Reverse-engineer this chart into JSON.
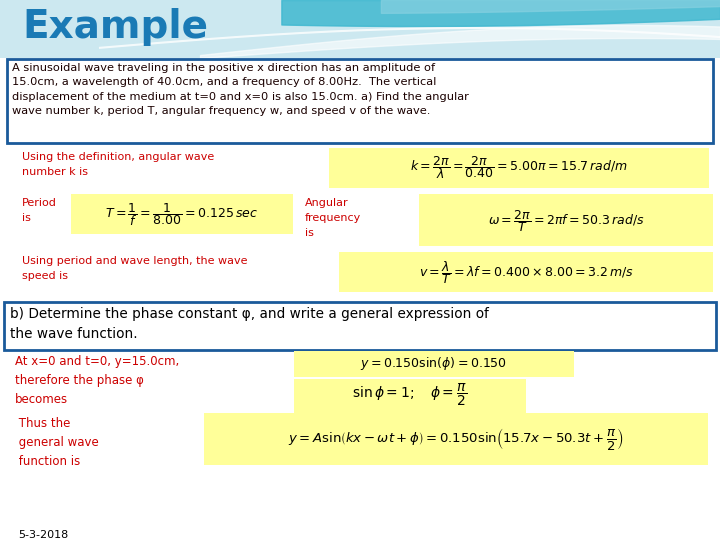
{
  "title": "Example",
  "title_color": "#1a7ab5",
  "title_fontsize": 28,
  "yellow_bg": "#ffff99",
  "box_border_color": "#1a5a9a",
  "red_text_color": "#cc0000",
  "date_text": "5-3-2018",
  "problem_text": "A sinusoidal wave traveling in the positive x direction has an amplitude of\n15.0cm, a wavelength of 40.0cm, and a frequency of 8.00Hz.  The vertical\ndisplacement of the medium at t=0 and x=0 is also 15.0cm. a) Find the angular\nwave number k, period T, angular frequency w, and speed v of the wave.",
  "part_b_text": "b) Determine the phase constant φ, and write a general expression of\nthe wave function.",
  "eq1": "$k = \\dfrac{2\\pi}{\\lambda} = \\dfrac{2\\pi}{0.40} = 5.00\\pi = 15.7\\,rad/m$",
  "eq2": "$T = \\dfrac{1}{f} = \\dfrac{1}{8.00} = 0.125\\,sec$",
  "eq3": "$\\omega = \\dfrac{2\\pi}{T} = 2\\pi f = 50.3\\,rad/s$",
  "eq4": "$v = \\dfrac{\\lambda}{T} = \\lambda f = 0.400 \\times 8.00 = 3.2\\,m/s$",
  "eq5": "$y = 0.150\\sin(\\phi) = 0.150$",
  "eq6": "$\\sin\\phi = 1;\\quad \\phi = \\dfrac{\\pi}{2}$",
  "eq7": "$y = A\\sin\\!\\left(kx - \\omega t + \\phi\\right) = 0.150\\sin\\!\\left(15.7x - 50.3t + \\dfrac{\\pi}{2}\\right)$",
  "label1": "Using the definition, angular wave\nnumber k is",
  "label2": "Period\nis",
  "label3": "Angular\nfrequency\nis",
  "label4": "Using period and wave length, the wave\nspeed is",
  "label5": "At x=0 and t=0, y=15.0cm,\ntherefore the phase φ\nbecomes",
  "label6": " Thus the\n general wave\n function is"
}
